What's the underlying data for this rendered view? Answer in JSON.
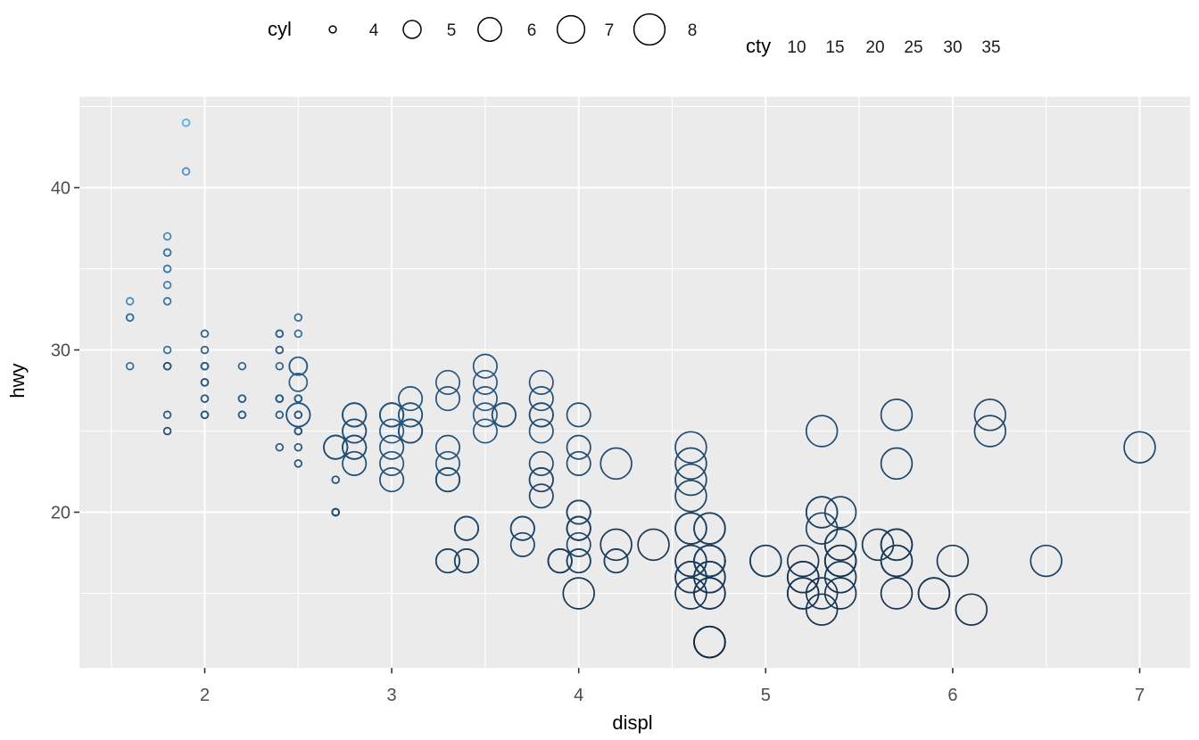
{
  "figure": {
    "legend_cyl": {
      "title": "cyl",
      "labels": [
        "4",
        "5",
        "6",
        "7",
        "8"
      ]
    },
    "legend_cty": {
      "title": "cty",
      "labels": [
        "10",
        "15",
        "20",
        "25",
        "30",
        "35"
      ]
    }
  },
  "chart_data": {
    "type": "scatter",
    "title": "",
    "xlabel": "displ",
    "ylabel": "hwy",
    "x_ticks": [
      2,
      3,
      4,
      5,
      6,
      7
    ],
    "y_ticks": [
      20,
      30,
      40
    ],
    "x_minor": [
      1.5,
      2.5,
      3.5,
      4.5,
      5.5,
      6.5
    ],
    "y_minor": [
      15,
      25,
      35,
      45
    ],
    "xlim": [
      1.33,
      7.27
    ],
    "ylim": [
      10.4,
      45.6
    ],
    "grid": true,
    "panel_bg": "#EBEBEB",
    "grid_color": "#FFFFFF",
    "point_shape": "open-circle",
    "size_scale": {
      "field": "cyl",
      "breaks": [
        4,
        5,
        6,
        7,
        8
      ],
      "legend_position": "top"
    },
    "color_scale": {
      "field": "cty",
      "breaks": [
        10,
        15,
        20,
        25,
        30,
        35
      ],
      "domain": [
        9,
        35
      ],
      "low": "#132B43",
      "mid": "#2E6695",
      "high": "#56B1F7"
    },
    "columns": [
      "displ",
      "hwy",
      "cyl",
      "cty"
    ],
    "points": [
      [
        1.8,
        29,
        4,
        18
      ],
      [
        1.8,
        29,
        4,
        21
      ],
      [
        2,
        31,
        4,
        20
      ],
      [
        2,
        30,
        4,
        21
      ],
      [
        2.8,
        26,
        6,
        16
      ],
      [
        2.8,
        26,
        6,
        18
      ],
      [
        3.1,
        27,
        6,
        18
      ],
      [
        1.8,
        26,
        4,
        18
      ],
      [
        1.8,
        25,
        4,
        16
      ],
      [
        2,
        28,
        4,
        20
      ],
      [
        2,
        27,
        4,
        19
      ],
      [
        2.8,
        25,
        6,
        15
      ],
      [
        2.8,
        25,
        6,
        17
      ],
      [
        3.1,
        25,
        6,
        17
      ],
      [
        3.1,
        25,
        6,
        15
      ],
      [
        2.8,
        24,
        6,
        15
      ],
      [
        3.1,
        25,
        6,
        17
      ],
      [
        4.2,
        23,
        8,
        16
      ],
      [
        5.3,
        20,
        8,
        14
      ],
      [
        5.3,
        15,
        8,
        11
      ],
      [
        5.3,
        20,
        8,
        14
      ],
      [
        5.7,
        17,
        8,
        13
      ],
      [
        6,
        17,
        8,
        12
      ],
      [
        5.7,
        26,
        8,
        16
      ],
      [
        5.7,
        23,
        8,
        15
      ],
      [
        6.2,
        26,
        8,
        16
      ],
      [
        6.2,
        25,
        8,
        15
      ],
      [
        7,
        24,
        8,
        15
      ],
      [
        5.3,
        19,
        8,
        14
      ],
      [
        5.3,
        14,
        8,
        11
      ],
      [
        5.7,
        15,
        8,
        11
      ],
      [
        6.5,
        17,
        8,
        14
      ],
      [
        2.4,
        27,
        4,
        19
      ],
      [
        2.4,
        30,
        4,
        22
      ],
      [
        3.1,
        26,
        6,
        18
      ],
      [
        3.5,
        29,
        6,
        18
      ],
      [
        3.6,
        26,
        6,
        17
      ],
      [
        2.4,
        24,
        4,
        18
      ],
      [
        3,
        24,
        6,
        17
      ],
      [
        3.3,
        22,
        6,
        16
      ],
      [
        3.3,
        22,
        6,
        16
      ],
      [
        3.3,
        24,
        6,
        17
      ],
      [
        3.3,
        22,
        6,
        16
      ],
      [
        3.8,
        22,
        6,
        15
      ],
      [
        3.8,
        21,
        6,
        15
      ],
      [
        3.8,
        23,
        6,
        16
      ],
      [
        3.8,
        22,
        6,
        15
      ],
      [
        4,
        23,
        6,
        16
      ],
      [
        3.7,
        19,
        6,
        15
      ],
      [
        3.7,
        18,
        6,
        14
      ],
      [
        3.9,
        17,
        6,
        13
      ],
      [
        3.9,
        17,
        6,
        14
      ],
      [
        4.7,
        19,
        8,
        14
      ],
      [
        4.7,
        19,
        8,
        14
      ],
      [
        4.7,
        12,
        8,
        9
      ],
      [
        5.2,
        17,
        8,
        11
      ],
      [
        5.2,
        15,
        8,
        11
      ],
      [
        3.9,
        17,
        6,
        13
      ],
      [
        4.7,
        17,
        8,
        13
      ],
      [
        4.7,
        12,
        8,
        9
      ],
      [
        4.7,
        17,
        8,
        13
      ],
      [
        5.2,
        16,
        8,
        11
      ],
      [
        5.7,
        18,
        8,
        13
      ],
      [
        5.9,
        15,
        8,
        11
      ],
      [
        4.7,
        16,
        8,
        12
      ],
      [
        4.7,
        12,
        8,
        9
      ],
      [
        4.7,
        17,
        8,
        13
      ],
      [
        4.7,
        17,
        8,
        13
      ],
      [
        4.7,
        16,
        8,
        12
      ],
      [
        4.7,
        17,
        8,
        13
      ],
      [
        5.2,
        15,
        8,
        11
      ],
      [
        5.2,
        16,
        8,
        11
      ],
      [
        5.7,
        17,
        8,
        13
      ],
      [
        5.9,
        15,
        8,
        11
      ],
      [
        4.6,
        17,
        8,
        11
      ],
      [
        5.4,
        17,
        8,
        11
      ],
      [
        5.4,
        18,
        8,
        12
      ],
      [
        4,
        17,
        6,
        14
      ],
      [
        4,
        19,
        6,
        15
      ],
      [
        4,
        19,
        6,
        13
      ],
      [
        4.6,
        19,
        8,
        13
      ],
      [
        5,
        17,
        8,
        13
      ],
      [
        4.2,
        17,
        6,
        14
      ],
      [
        4.2,
        17,
        6,
        14
      ],
      [
        4.6,
        16,
        8,
        13
      ],
      [
        4.6,
        16,
        8,
        13
      ],
      [
        4.6,
        17,
        8,
        13
      ],
      [
        5.4,
        15,
        8,
        11
      ],
      [
        5.4,
        17,
        8,
        13
      ],
      [
        3.8,
        26,
        6,
        18
      ],
      [
        3.8,
        25,
        6,
        18
      ],
      [
        4,
        26,
        6,
        17
      ],
      [
        4,
        24,
        6,
        16
      ],
      [
        4.6,
        21,
        8,
        15
      ],
      [
        4.6,
        22,
        8,
        15
      ],
      [
        4.6,
        23,
        8,
        15
      ],
      [
        4.6,
        24,
        8,
        16
      ],
      [
        5.4,
        20,
        8,
        14
      ],
      [
        1.6,
        33,
        4,
        28
      ],
      [
        1.6,
        32,
        4,
        24
      ],
      [
        1.6,
        32,
        4,
        25
      ],
      [
        1.6,
        29,
        4,
        23
      ],
      [
        1.6,
        32,
        4,
        24
      ],
      [
        1.8,
        34,
        4,
        26
      ],
      [
        1.8,
        36,
        4,
        25
      ],
      [
        1.8,
        36,
        4,
        24
      ],
      [
        2,
        29,
        4,
        21
      ],
      [
        2.4,
        26,
        4,
        18
      ],
      [
        2.4,
        27,
        4,
        18
      ],
      [
        2.4,
        30,
        4,
        21
      ],
      [
        2.4,
        31,
        4,
        21
      ],
      [
        2.5,
        26,
        6,
        18
      ],
      [
        2.5,
        26,
        6,
        18
      ],
      [
        3.3,
        28,
        6,
        19
      ],
      [
        2,
        26,
        4,
        19
      ],
      [
        2,
        29,
        4,
        19
      ],
      [
        2,
        28,
        4,
        20
      ],
      [
        2,
        27,
        4,
        20
      ],
      [
        2.7,
        24,
        6,
        17
      ],
      [
        2.7,
        24,
        6,
        16
      ],
      [
        2.7,
        24,
        6,
        17
      ],
      [
        3,
        22,
        6,
        17
      ],
      [
        3.7,
        19,
        6,
        15
      ],
      [
        4,
        20,
        6,
        15
      ],
      [
        4.7,
        17,
        8,
        14
      ],
      [
        4.7,
        12,
        8,
        9
      ],
      [
        4.7,
        19,
        8,
        14
      ],
      [
        5.7,
        18,
        8,
        13
      ],
      [
        6.1,
        14,
        8,
        11
      ],
      [
        4,
        15,
        8,
        11
      ],
      [
        4.2,
        18,
        8,
        12
      ],
      [
        4.4,
        18,
        8,
        12
      ],
      [
        4.6,
        15,
        8,
        11
      ],
      [
        5.4,
        17,
        8,
        11
      ],
      [
        5.4,
        16,
        8,
        11
      ],
      [
        5.4,
        18,
        8,
        12
      ],
      [
        4,
        17,
        6,
        14
      ],
      [
        4,
        19,
        6,
        13
      ],
      [
        4.6,
        19,
        8,
        13
      ],
      [
        5,
        17,
        8,
        13
      ],
      [
        2.4,
        29,
        4,
        21
      ],
      [
        2.4,
        27,
        4,
        19
      ],
      [
        2.5,
        31,
        4,
        23
      ],
      [
        2.5,
        32,
        4,
        23
      ],
      [
        3.5,
        27,
        6,
        19
      ],
      [
        3.5,
        26,
        6,
        19
      ],
      [
        3,
        26,
        6,
        18
      ],
      [
        3,
        25,
        6,
        19
      ],
      [
        3.5,
        25,
        6,
        19
      ],
      [
        3.3,
        17,
        6,
        14
      ],
      [
        3.3,
        17,
        6,
        15
      ],
      [
        4,
        20,
        6,
        14
      ],
      [
        5.6,
        18,
        8,
        12
      ],
      [
        3.1,
        26,
        6,
        18
      ],
      [
        3.8,
        26,
        6,
        16
      ],
      [
        3.8,
        27,
        6,
        17
      ],
      [
        3.8,
        28,
        6,
        18
      ],
      [
        5.3,
        25,
        8,
        16
      ],
      [
        2.5,
        25,
        4,
        18
      ],
      [
        2.5,
        24,
        4,
        18
      ],
      [
        2.5,
        27,
        4,
        20
      ],
      [
        2.5,
        25,
        4,
        19
      ],
      [
        2.5,
        26,
        4,
        20
      ],
      [
        2.5,
        23,
        4,
        18
      ],
      [
        2.2,
        26,
        4,
        21
      ],
      [
        2.2,
        26,
        4,
        19
      ],
      [
        2.5,
        26,
        4,
        19
      ],
      [
        2.5,
        26,
        4,
        19
      ],
      [
        2.5,
        25,
        4,
        20
      ],
      [
        2.5,
        27,
        4,
        20
      ],
      [
        2.5,
        25,
        4,
        19
      ],
      [
        2.5,
        27,
        4,
        20
      ],
      [
        2.7,
        20,
        4,
        15
      ],
      [
        2.7,
        20,
        4,
        16
      ],
      [
        3.4,
        19,
        6,
        15
      ],
      [
        3.4,
        17,
        6,
        15
      ],
      [
        4,
        20,
        6,
        16
      ],
      [
        4.7,
        17,
        8,
        14
      ],
      [
        2.2,
        29,
        4,
        21
      ],
      [
        2.2,
        27,
        4,
        21
      ],
      [
        2.4,
        31,
        4,
        21
      ],
      [
        2.4,
        31,
        4,
        21
      ],
      [
        3,
        26,
        6,
        18
      ],
      [
        3,
        26,
        6,
        18
      ],
      [
        3.5,
        28,
        6,
        19
      ],
      [
        2.2,
        27,
        4,
        21
      ],
      [
        2.2,
        27,
        4,
        21
      ],
      [
        2.4,
        31,
        4,
        21
      ],
      [
        2.4,
        31,
        4,
        22
      ],
      [
        3,
        26,
        6,
        18
      ],
      [
        3.3,
        27,
        6,
        18
      ],
      [
        1.8,
        30,
        4,
        24
      ],
      [
        1.8,
        33,
        4,
        24
      ],
      [
        1.8,
        35,
        4,
        26
      ],
      [
        1.8,
        37,
        4,
        28
      ],
      [
        1.8,
        35,
        4,
        26
      ],
      [
        4.7,
        15,
        8,
        11
      ],
      [
        5.7,
        18,
        8,
        13
      ],
      [
        3,
        23,
        6,
        18
      ],
      [
        3.3,
        23,
        6,
        18
      ],
      [
        2.7,
        20,
        4,
        17
      ],
      [
        2.7,
        20,
        4,
        16
      ],
      [
        2.7,
        22,
        4,
        17
      ],
      [
        3.4,
        17,
        6,
        15
      ],
      [
        3.4,
        19,
        6,
        15
      ],
      [
        4,
        18,
        6,
        15
      ],
      [
        4,
        20,
        6,
        16
      ],
      [
        4.7,
        15,
        8,
        11
      ],
      [
        4.7,
        17,
        8,
        14
      ],
      [
        5.7,
        17,
        8,
        13
      ],
      [
        2,
        29,
        4,
        21
      ],
      [
        2,
        26,
        4,
        19
      ],
      [
        2,
        29,
        4,
        21
      ],
      [
        2,
        29,
        4,
        22
      ],
      [
        2.8,
        24,
        6,
        17
      ],
      [
        1.9,
        44,
        4,
        33
      ],
      [
        2,
        29,
        4,
        21
      ],
      [
        2,
        26,
        4,
        19
      ],
      [
        2,
        29,
        4,
        22
      ],
      [
        2,
        29,
        4,
        21
      ],
      [
        2.5,
        29,
        5,
        21
      ],
      [
        2.5,
        29,
        5,
        21
      ],
      [
        2.8,
        23,
        6,
        16
      ],
      [
        2.8,
        24,
        6,
        17
      ],
      [
        1.9,
        44,
        4,
        35
      ],
      [
        1.9,
        41,
        4,
        29
      ],
      [
        2,
        29,
        4,
        21
      ],
      [
        2,
        26,
        4,
        19
      ],
      [
        2.5,
        28,
        5,
        20
      ],
      [
        2.5,
        29,
        5,
        20
      ],
      [
        1.8,
        29,
        4,
        21
      ],
      [
        1.8,
        29,
        4,
        18
      ],
      [
        2,
        28,
        4,
        19
      ],
      [
        2,
        29,
        4,
        21
      ],
      [
        2.8,
        26,
        6,
        16
      ],
      [
        2.8,
        26,
        6,
        18
      ],
      [
        3.6,
        26,
        6,
        17
      ]
    ]
  }
}
